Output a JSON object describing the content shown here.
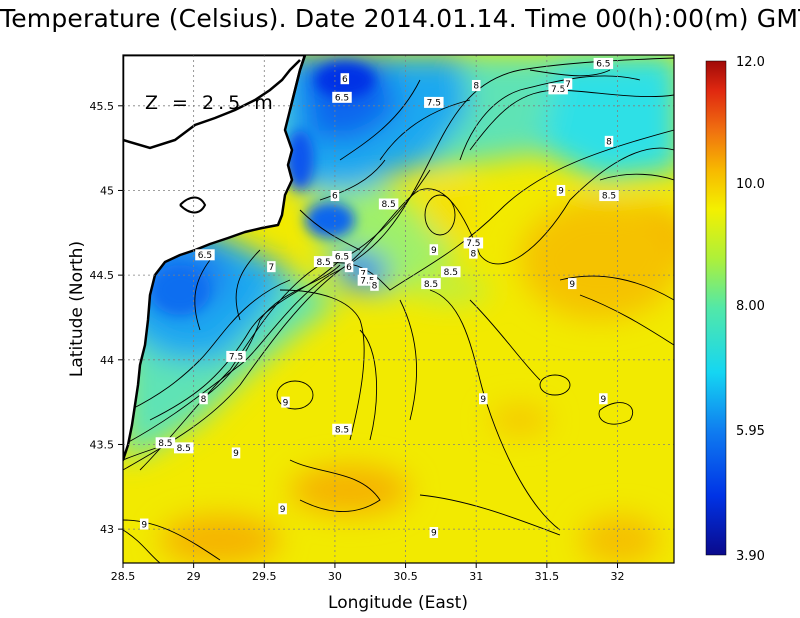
{
  "title": "Temperature (Celsius). Date 2014.01.14. Time 00(h):00(m) GMT",
  "depth_label": "Z = 2.5 m",
  "x_axis": {
    "label": "Longitude (East)",
    "range": [
      28.5,
      32.4
    ],
    "ticks": [
      {
        "v": 28.5,
        "t": "28.5"
      },
      {
        "v": 29,
        "t": "29"
      },
      {
        "v": 29.5,
        "t": "29.5"
      },
      {
        "v": 30,
        "t": "30"
      },
      {
        "v": 30.5,
        "t": "30.5"
      },
      {
        "v": 31,
        "t": "31"
      },
      {
        "v": 31.5,
        "t": "31.5"
      },
      {
        "v": 32,
        "t": "32"
      }
    ]
  },
  "y_axis": {
    "label": "Latitude (North)",
    "range": [
      42.8,
      45.8
    ],
    "ticks": [
      {
        "v": 43,
        "t": "43"
      },
      {
        "v": 43.5,
        "t": "43.5"
      },
      {
        "v": 44,
        "t": "44"
      },
      {
        "v": 44.5,
        "t": "44.5"
      },
      {
        "v": 45,
        "t": "45"
      },
      {
        "v": 45.5,
        "t": "45.5"
      }
    ]
  },
  "colorbar": {
    "min": 3.9,
    "max": 12.0,
    "ticks": [
      {
        "v": 12.0,
        "t": "12.0"
      },
      {
        "v": 10.0,
        "t": "10.0"
      },
      {
        "v": 8.0,
        "t": "8.00"
      },
      {
        "v": 5.95,
        "t": "5.95"
      },
      {
        "v": 3.9,
        "t": "3.90"
      }
    ]
  },
  "contour_labels": [
    {
      "lon": 30.07,
      "lat": 45.66,
      "t": "6"
    },
    {
      "lon": 30.05,
      "lat": 45.55,
      "t": "6.5"
    },
    {
      "lon": 31.0,
      "lat": 45.62,
      "t": "8"
    },
    {
      "lon": 31.58,
      "lat": 45.6,
      "t": "7.5"
    },
    {
      "lon": 31.65,
      "lat": 45.63,
      "t": "7"
    },
    {
      "lon": 31.9,
      "lat": 45.75,
      "t": "6.5"
    },
    {
      "lon": 30.7,
      "lat": 45.52,
      "t": "7.5"
    },
    {
      "lon": 31.94,
      "lat": 45.29,
      "t": "8"
    },
    {
      "lon": 31.6,
      "lat": 45.0,
      "t": "9"
    },
    {
      "lon": 31.94,
      "lat": 44.97,
      "t": "8.5"
    },
    {
      "lon": 30.0,
      "lat": 44.97,
      "t": "6"
    },
    {
      "lon": 30.38,
      "lat": 44.92,
      "t": "8.5"
    },
    {
      "lon": 30.7,
      "lat": 44.65,
      "t": "9"
    },
    {
      "lon": 30.98,
      "lat": 44.69,
      "t": "7.5"
    },
    {
      "lon": 30.98,
      "lat": 44.63,
      "t": "8"
    },
    {
      "lon": 30.05,
      "lat": 44.61,
      "t": "6.5"
    },
    {
      "lon": 29.92,
      "lat": 44.58,
      "t": "8.5"
    },
    {
      "lon": 30.1,
      "lat": 44.55,
      "t": "6"
    },
    {
      "lon": 30.2,
      "lat": 44.51,
      "t": "7"
    },
    {
      "lon": 30.23,
      "lat": 44.47,
      "t": "7.5"
    },
    {
      "lon": 30.28,
      "lat": 44.44,
      "t": "8"
    },
    {
      "lon": 30.82,
      "lat": 44.52,
      "t": "8.5"
    },
    {
      "lon": 30.68,
      "lat": 44.45,
      "t": "8.5"
    },
    {
      "lon": 31.68,
      "lat": 44.45,
      "t": "9"
    },
    {
      "lon": 29.08,
      "lat": 44.62,
      "t": "6.5"
    },
    {
      "lon": 29.55,
      "lat": 44.55,
      "t": "7"
    },
    {
      "lon": 29.3,
      "lat": 44.02,
      "t": "7.5"
    },
    {
      "lon": 29.07,
      "lat": 43.77,
      "t": "8"
    },
    {
      "lon": 28.8,
      "lat": 43.51,
      "t": "8.5"
    },
    {
      "lon": 28.93,
      "lat": 43.48,
      "t": "8.5"
    },
    {
      "lon": 29.65,
      "lat": 43.75,
      "t": "9"
    },
    {
      "lon": 31.05,
      "lat": 43.77,
      "t": "9"
    },
    {
      "lon": 31.9,
      "lat": 43.77,
      "t": "9"
    },
    {
      "lon": 30.05,
      "lat": 43.59,
      "t": "8.5"
    },
    {
      "lon": 29.3,
      "lat": 43.45,
      "t": "9"
    },
    {
      "lon": 29.63,
      "lat": 43.12,
      "t": "9"
    },
    {
      "lon": 28.65,
      "lat": 43.03,
      "t": "9"
    },
    {
      "lon": 30.7,
      "lat": 42.98,
      "t": "9"
    }
  ],
  "colors": {
    "frame": "#000000",
    "land": "#ffffff",
    "grid": "#7a7a7a"
  }
}
